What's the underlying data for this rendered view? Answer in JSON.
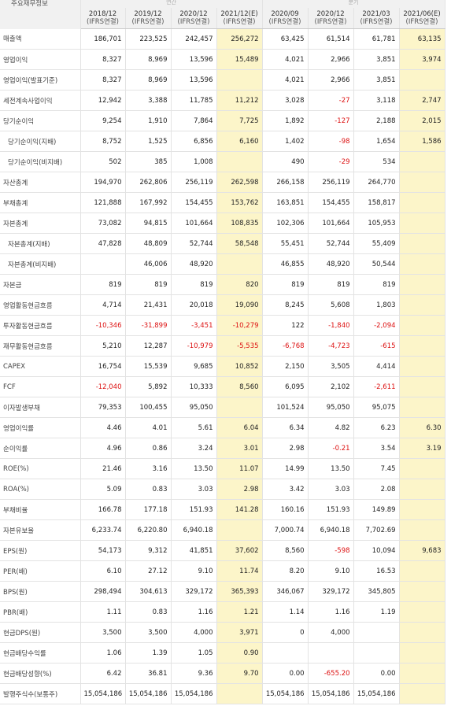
{
  "corner_label": "주요재무정보",
  "top_groups": [
    "연간",
    "분기"
  ],
  "columns": [
    {
      "period": "2018/12",
      "basis": "(IFRS연결)",
      "est": false
    },
    {
      "period": "2019/12",
      "basis": "(IFRS연결)",
      "est": false
    },
    {
      "period": "2020/12",
      "basis": "(IFRS연결)",
      "est": false
    },
    {
      "period": "2021/12(E)",
      "basis": "(IFRS연결)",
      "est": true
    },
    {
      "period": "2020/09",
      "basis": "(IFRS연결)",
      "est": false
    },
    {
      "period": "2020/12",
      "basis": "(IFRS연결)",
      "est": false
    },
    {
      "period": "2021/03",
      "basis": "(IFRS연결)",
      "est": false
    },
    {
      "period": "2021/06(E)",
      "basis": "(IFRS연결)",
      "est": true
    }
  ],
  "rows": [
    {
      "label": "매출액",
      "indent": 0,
      "values": [
        "186,701",
        "223,525",
        "242,457",
        "256,272",
        "63,425",
        "61,514",
        "61,781",
        "63,135"
      ]
    },
    {
      "label": "영업이익",
      "indent": 0,
      "values": [
        "8,327",
        "8,969",
        "13,596",
        "15,489",
        "4,021",
        "2,966",
        "3,851",
        "3,974"
      ]
    },
    {
      "label": "영업이익(발표기준)",
      "indent": 0,
      "values": [
        "8,327",
        "8,969",
        "13,596",
        "",
        "4,021",
        "2,966",
        "3,851",
        ""
      ]
    },
    {
      "label": "세전계속사업이익",
      "indent": 0,
      "values": [
        "12,942",
        "3,388",
        "11,785",
        "11,212",
        "3,028",
        "-27",
        "3,118",
        "2,747"
      ]
    },
    {
      "label": "당기순이익",
      "indent": 0,
      "values": [
        "9,254",
        "1,910",
        "7,864",
        "7,725",
        "1,892",
        "-127",
        "2,188",
        "2,015"
      ]
    },
    {
      "label": "당기순이익(지배)",
      "indent": 1,
      "values": [
        "8,752",
        "1,525",
        "6,856",
        "6,160",
        "1,402",
        "-98",
        "1,654",
        "1,586"
      ]
    },
    {
      "label": "당기순이익(비지배)",
      "indent": 1,
      "values": [
        "502",
        "385",
        "1,008",
        "",
        "490",
        "-29",
        "534",
        ""
      ]
    },
    {
      "label": "자산총계",
      "indent": 0,
      "values": [
        "194,970",
        "262,806",
        "256,119",
        "262,598",
        "266,158",
        "256,119",
        "264,770",
        ""
      ]
    },
    {
      "label": "부채총계",
      "indent": 0,
      "values": [
        "121,888",
        "167,992",
        "154,455",
        "153,762",
        "163,851",
        "154,455",
        "158,817",
        ""
      ]
    },
    {
      "label": "자본총계",
      "indent": 0,
      "values": [
        "73,082",
        "94,815",
        "101,664",
        "108,835",
        "102,306",
        "101,664",
        "105,953",
        ""
      ]
    },
    {
      "label": "자본총계(지배)",
      "indent": 1,
      "values": [
        "47,828",
        "48,809",
        "52,744",
        "58,548",
        "55,451",
        "52,744",
        "55,409",
        ""
      ]
    },
    {
      "label": "자본총계(비지배)",
      "indent": 1,
      "values": [
        "",
        "46,006",
        "48,920",
        "",
        "46,855",
        "48,920",
        "50,544",
        ""
      ]
    },
    {
      "label": "자본금",
      "indent": 0,
      "values": [
        "819",
        "819",
        "819",
        "820",
        "819",
        "819",
        "819",
        ""
      ]
    },
    {
      "label": "영업활동현금흐름",
      "indent": 0,
      "values": [
        "4,714",
        "21,431",
        "20,018",
        "19,090",
        "8,245",
        "5,608",
        "1,803",
        ""
      ]
    },
    {
      "label": "투자활동현금흐름",
      "indent": 0,
      "values": [
        "-10,346",
        "-31,899",
        "-3,451",
        "-10,279",
        "122",
        "-1,840",
        "-2,094",
        ""
      ]
    },
    {
      "label": "재무활동현금흐름",
      "indent": 0,
      "values": [
        "5,210",
        "12,287",
        "-10,979",
        "-5,535",
        "-6,768",
        "-4,723",
        "-615",
        ""
      ]
    },
    {
      "label": "CAPEX",
      "indent": 0,
      "values": [
        "16,754",
        "15,539",
        "9,685",
        "10,852",
        "2,150",
        "3,505",
        "4,414",
        ""
      ]
    },
    {
      "label": "FCF",
      "indent": 0,
      "values": [
        "-12,040",
        "5,892",
        "10,333",
        "8,560",
        "6,095",
        "2,102",
        "-2,611",
        ""
      ]
    },
    {
      "label": "이자발생부채",
      "indent": 0,
      "values": [
        "79,353",
        "100,455",
        "95,050",
        "",
        "101,524",
        "95,050",
        "95,075",
        ""
      ]
    },
    {
      "label": "영업이익률",
      "indent": 0,
      "values": [
        "4.46",
        "4.01",
        "5.61",
        "6.04",
        "6.34",
        "4.82",
        "6.23",
        "6.30"
      ]
    },
    {
      "label": "순이익률",
      "indent": 0,
      "values": [
        "4.96",
        "0.86",
        "3.24",
        "3.01",
        "2.98",
        "-0.21",
        "3.54",
        "3.19"
      ]
    },
    {
      "label": "ROE(%)",
      "indent": 0,
      "values": [
        "21.46",
        "3.16",
        "13.50",
        "11.07",
        "14.99",
        "13.50",
        "7.45",
        ""
      ]
    },
    {
      "label": "ROA(%)",
      "indent": 0,
      "values": [
        "5.09",
        "0.83",
        "3.03",
        "2.98",
        "3.42",
        "3.03",
        "2.08",
        ""
      ]
    },
    {
      "label": "부채비율",
      "indent": 0,
      "values": [
        "166.78",
        "177.18",
        "151.93",
        "141.28",
        "160.16",
        "151.93",
        "149.89",
        ""
      ]
    },
    {
      "label": "자본유보율",
      "indent": 0,
      "values": [
        "6,233.74",
        "6,220.80",
        "6,940.18",
        "",
        "7,000.74",
        "6,940.18",
        "7,702.69",
        ""
      ]
    },
    {
      "label": "EPS(원)",
      "indent": 0,
      "values": [
        "54,173",
        "9,312",
        "41,851",
        "37,602",
        "8,560",
        "-598",
        "10,094",
        "9,683"
      ]
    },
    {
      "label": "PER(배)",
      "indent": 0,
      "values": [
        "6.10",
        "27.12",
        "9.10",
        "11.74",
        "8.20",
        "9.10",
        "16.53",
        ""
      ]
    },
    {
      "label": "BPS(원)",
      "indent": 0,
      "values": [
        "298,494",
        "304,613",
        "329,172",
        "365,393",
        "346,067",
        "329,172",
        "345,805",
        ""
      ]
    },
    {
      "label": "PBR(배)",
      "indent": 0,
      "values": [
        "1.11",
        "0.83",
        "1.16",
        "1.21",
        "1.14",
        "1.16",
        "1.19",
        ""
      ]
    },
    {
      "label": "현금DPS(원)",
      "indent": 0,
      "values": [
        "3,500",
        "3,500",
        "4,000",
        "3,971",
        "0",
        "4,000",
        "",
        ""
      ]
    },
    {
      "label": "현금배당수익률",
      "indent": 0,
      "values": [
        "1.06",
        "1.39",
        "1.05",
        "0.90",
        "",
        "",
        "",
        ""
      ]
    },
    {
      "label": "현금배당성향(%)",
      "indent": 0,
      "values": [
        "6.42",
        "36.81",
        "9.36",
        "9.70",
        "0.00",
        "-655.20",
        "0.00",
        ""
      ]
    },
    {
      "label": "발행주식수(보통주)",
      "indent": 0,
      "values": [
        "15,054,186",
        "15,054,186",
        "15,054,186",
        "",
        "15,054,186",
        "15,054,186",
        "15,054,186",
        ""
      ]
    }
  ]
}
